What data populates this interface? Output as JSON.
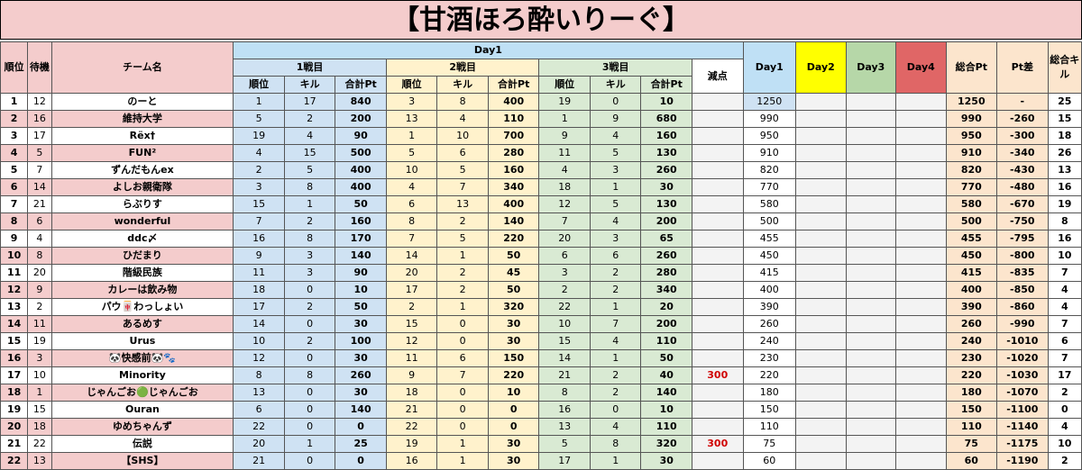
{
  "title": "【甘酒ほろ酔いりーぐ】",
  "headers": {
    "rank": "順位",
    "seat": "待機",
    "team": "チーム名",
    "day1_group": "Day1",
    "match1": "1戦目",
    "match2": "2戦目",
    "match3": "3戦目",
    "place": "順位",
    "kill": "キル",
    "sum": "合計Pt",
    "penalty": "減点",
    "day1": "Day1",
    "day2": "Day2",
    "day3": "Day3",
    "day4": "Day4",
    "total": "総合Pt",
    "diff": "Pt差",
    "total_kill": "総合キル"
  },
  "colors": {
    "title_bg": "#f4cccc",
    "match1": "#cfe2f3",
    "match2": "#fff2cc",
    "match3": "#d9ead3",
    "day2": "#ffff00",
    "day4": "#e06666",
    "total": "#fce5cd",
    "penalty": "#d00000"
  },
  "rows": [
    {
      "rank": "1",
      "seat": "12",
      "team": "のーと",
      "m1p": "1",
      "m1k": "17",
      "m1s": "840",
      "m2p": "3",
      "m2k": "8",
      "m2s": "400",
      "m3p": "19",
      "m3k": "0",
      "m3s": "10",
      "pen": "",
      "day1": "1250",
      "total": "1250",
      "diff": "-",
      "tk": "25",
      "pink": false
    },
    {
      "rank": "2",
      "seat": "16",
      "team": "維持大学",
      "m1p": "5",
      "m1k": "2",
      "m1s": "200",
      "m2p": "13",
      "m2k": "4",
      "m2s": "110",
      "m3p": "1",
      "m3k": "9",
      "m3s": "680",
      "pen": "",
      "day1": "990",
      "total": "990",
      "diff": "-260",
      "tk": "15",
      "pink": true
    },
    {
      "rank": "3",
      "seat": "17",
      "team": "Rёx†",
      "m1p": "19",
      "m1k": "4",
      "m1s": "90",
      "m2p": "1",
      "m2k": "10",
      "m2s": "700",
      "m3p": "9",
      "m3k": "4",
      "m3s": "160",
      "pen": "",
      "day1": "950",
      "total": "950",
      "diff": "-300",
      "tk": "18",
      "pink": false
    },
    {
      "rank": "4",
      "seat": "5",
      "team": "FUN²",
      "m1p": "4",
      "m1k": "15",
      "m1s": "500",
      "m2p": "5",
      "m2k": "6",
      "m2s": "280",
      "m3p": "11",
      "m3k": "5",
      "m3s": "130",
      "pen": "",
      "day1": "910",
      "total": "910",
      "diff": "-340",
      "tk": "26",
      "pink": true
    },
    {
      "rank": "5",
      "seat": "7",
      "team": "ずんだもんex",
      "m1p": "2",
      "m1k": "5",
      "m1s": "400",
      "m2p": "10",
      "m2k": "5",
      "m2s": "160",
      "m3p": "4",
      "m3k": "3",
      "m3s": "260",
      "pen": "",
      "day1": "820",
      "total": "820",
      "diff": "-430",
      "tk": "13",
      "pink": false
    },
    {
      "rank": "6",
      "seat": "14",
      "team": "よしお親衛隊",
      "m1p": "3",
      "m1k": "8",
      "m1s": "400",
      "m2p": "4",
      "m2k": "7",
      "m2s": "340",
      "m3p": "18",
      "m3k": "1",
      "m3s": "30",
      "pen": "",
      "day1": "770",
      "total": "770",
      "diff": "-480",
      "tk": "16",
      "pink": true
    },
    {
      "rank": "7",
      "seat": "21",
      "team": "らぶりす",
      "m1p": "15",
      "m1k": "1",
      "m1s": "50",
      "m2p": "6",
      "m2k": "13",
      "m2s": "400",
      "m3p": "12",
      "m3k": "5",
      "m3s": "130",
      "pen": "",
      "day1": "580",
      "total": "580",
      "diff": "-670",
      "tk": "19",
      "pink": false
    },
    {
      "rank": "8",
      "seat": "6",
      "team": "wonderful",
      "m1p": "7",
      "m1k": "2",
      "m1s": "160",
      "m2p": "8",
      "m2k": "2",
      "m2s": "140",
      "m3p": "7",
      "m3k": "4",
      "m3s": "200",
      "pen": "",
      "day1": "500",
      "total": "500",
      "diff": "-750",
      "tk": "8",
      "pink": true
    },
    {
      "rank": "9",
      "seat": "4",
      "team": "ddc〆",
      "m1p": "16",
      "m1k": "8",
      "m1s": "170",
      "m2p": "7",
      "m2k": "5",
      "m2s": "220",
      "m3p": "20",
      "m3k": "3",
      "m3s": "65",
      "pen": "",
      "day1": "455",
      "total": "455",
      "diff": "-795",
      "tk": "16",
      "pink": false
    },
    {
      "rank": "10",
      "seat": "8",
      "team": "ひだまり",
      "m1p": "9",
      "m1k": "3",
      "m1s": "140",
      "m2p": "14",
      "m2k": "1",
      "m2s": "50",
      "m3p": "6",
      "m3k": "6",
      "m3s": "260",
      "pen": "",
      "day1": "450",
      "total": "450",
      "diff": "-800",
      "tk": "10",
      "pink": true
    },
    {
      "rank": "11",
      "seat": "20",
      "team": "階級民族",
      "m1p": "11",
      "m1k": "3",
      "m1s": "90",
      "m2p": "20",
      "m2k": "2",
      "m2s": "45",
      "m3p": "3",
      "m3k": "2",
      "m3s": "280",
      "pen": "",
      "day1": "415",
      "total": "415",
      "diff": "-835",
      "tk": "7",
      "pink": false
    },
    {
      "rank": "12",
      "seat": "9",
      "team": "カレーは飲み物",
      "m1p": "18",
      "m1k": "0",
      "m1s": "10",
      "m2p": "17",
      "m2k": "2",
      "m2s": "50",
      "m3p": "2",
      "m3k": "2",
      "m3s": "340",
      "pen": "",
      "day1": "400",
      "total": "400",
      "diff": "-850",
      "tk": "4",
      "pink": true
    },
    {
      "rank": "13",
      "seat": "2",
      "team": "パウ🀄わっしょい",
      "m1p": "17",
      "m1k": "2",
      "m1s": "50",
      "m2p": "2",
      "m2k": "1",
      "m2s": "320",
      "m3p": "22",
      "m3k": "1",
      "m3s": "20",
      "pen": "",
      "day1": "390",
      "total": "390",
      "diff": "-860",
      "tk": "4",
      "pink": false
    },
    {
      "rank": "14",
      "seat": "11",
      "team": "あるめす",
      "m1p": "14",
      "m1k": "0",
      "m1s": "30",
      "m2p": "15",
      "m2k": "0",
      "m2s": "30",
      "m3p": "10",
      "m3k": "7",
      "m3s": "200",
      "pen": "",
      "day1": "260",
      "total": "260",
      "diff": "-990",
      "tk": "7",
      "pink": true
    },
    {
      "rank": "15",
      "seat": "19",
      "team": "Urus",
      "m1p": "10",
      "m1k": "2",
      "m1s": "100",
      "m2p": "12",
      "m2k": "0",
      "m2s": "30",
      "m3p": "15",
      "m3k": "4",
      "m3s": "110",
      "pen": "",
      "day1": "240",
      "total": "240",
      "diff": "-1010",
      "tk": "6",
      "pink": false
    },
    {
      "rank": "16",
      "seat": "3",
      "team": "🐼快感前🐼🐾",
      "m1p": "12",
      "m1k": "0",
      "m1s": "30",
      "m2p": "11",
      "m2k": "6",
      "m2s": "150",
      "m3p": "14",
      "m3k": "1",
      "m3s": "50",
      "pen": "",
      "day1": "230",
      "total": "230",
      "diff": "-1020",
      "tk": "7",
      "pink": true
    },
    {
      "rank": "17",
      "seat": "10",
      "team": "Minority",
      "m1p": "8",
      "m1k": "8",
      "m1s": "260",
      "m2p": "9",
      "m2k": "7",
      "m2s": "220",
      "m3p": "21",
      "m3k": "2",
      "m3s": "40",
      "pen": "300",
      "day1": "220",
      "total": "220",
      "diff": "-1030",
      "tk": "17",
      "pink": false
    },
    {
      "rank": "18",
      "seat": "1",
      "team": "じゃんごお🟢じゃんごお",
      "m1p": "13",
      "m1k": "0",
      "m1s": "30",
      "m2p": "18",
      "m2k": "0",
      "m2s": "10",
      "m3p": "8",
      "m3k": "2",
      "m3s": "140",
      "pen": "",
      "day1": "180",
      "total": "180",
      "diff": "-1070",
      "tk": "2",
      "pink": true
    },
    {
      "rank": "19",
      "seat": "15",
      "team": "Ouran",
      "m1p": "6",
      "m1k": "0",
      "m1s": "140",
      "m2p": "21",
      "m2k": "0",
      "m2s": "0",
      "m3p": "16",
      "m3k": "0",
      "m3s": "10",
      "pen": "",
      "day1": "150",
      "total": "150",
      "diff": "-1100",
      "tk": "0",
      "pink": false
    },
    {
      "rank": "20",
      "seat": "18",
      "team": "ゆめちゃんず",
      "m1p": "22",
      "m1k": "0",
      "m1s": "0",
      "m2p": "22",
      "m2k": "0",
      "m2s": "0",
      "m3p": "13",
      "m3k": "4",
      "m3s": "110",
      "pen": "",
      "day1": "110",
      "total": "110",
      "diff": "-1140",
      "tk": "4",
      "pink": true
    },
    {
      "rank": "21",
      "seat": "22",
      "team": "伝説",
      "m1p": "20",
      "m1k": "1",
      "m1s": "25",
      "m2p": "19",
      "m2k": "1",
      "m2s": "30",
      "m3p": "5",
      "m3k": "8",
      "m3s": "320",
      "pen": "300",
      "day1": "75",
      "total": "75",
      "diff": "-1175",
      "tk": "10",
      "pink": false
    },
    {
      "rank": "22",
      "seat": "13",
      "team": "【SHS】",
      "m1p": "21",
      "m1k": "0",
      "m1s": "0",
      "m2p": "16",
      "m2k": "1",
      "m2s": "30",
      "m3p": "17",
      "m3k": "1",
      "m3s": "30",
      "pen": "",
      "day1": "60",
      "total": "60",
      "diff": "-1190",
      "tk": "2",
      "pink": true
    }
  ]
}
